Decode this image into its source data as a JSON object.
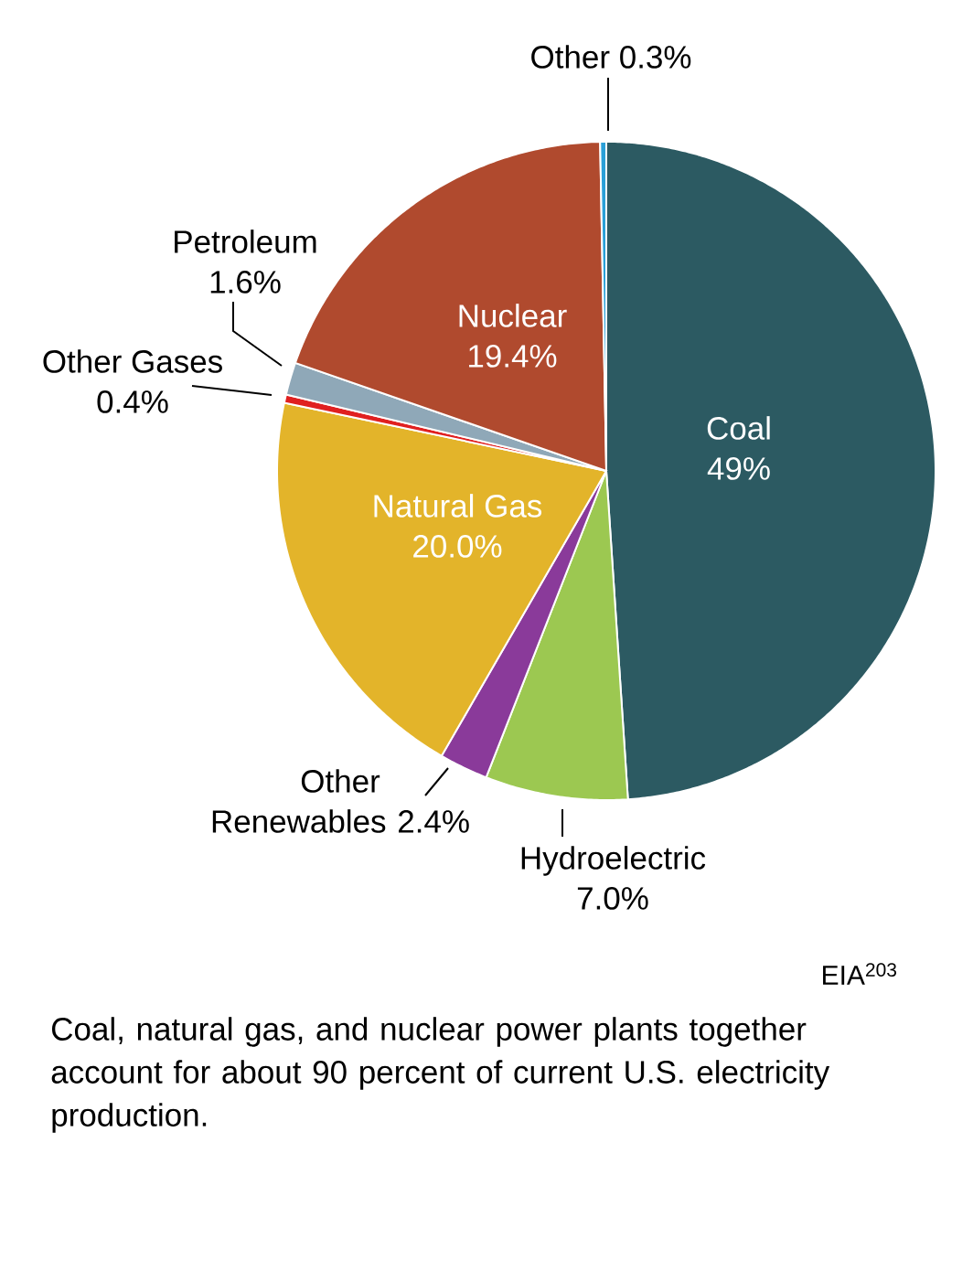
{
  "chart_data": {
    "type": "pie",
    "categories": [
      "Coal",
      "Hydroelectric",
      "Other Renewables",
      "Natural Gas",
      "Other Gases",
      "Petroleum",
      "Nuclear",
      "Other"
    ],
    "values": [
      49,
      7.0,
      2.4,
      20.0,
      0.4,
      1.6,
      19.4,
      0.3
    ],
    "value_labels": [
      "49%",
      "7.0%",
      "2.4%",
      "20.0%",
      "0.4%",
      "1.6%",
      "19.4%",
      "0.3%"
    ],
    "colors": [
      "#2c5a62",
      "#9cc851",
      "#8a3a9a",
      "#e3b42a",
      "#e02020",
      "#8fa8b8",
      "#b04a2e",
      "#2aa0d8"
    ],
    "annotations": [
      "EIA$^{203}$",
      "Coal, natural gas, and nuclear power plants together account for about 90 percent of current U.S. electricity production."
    ]
  }
}
